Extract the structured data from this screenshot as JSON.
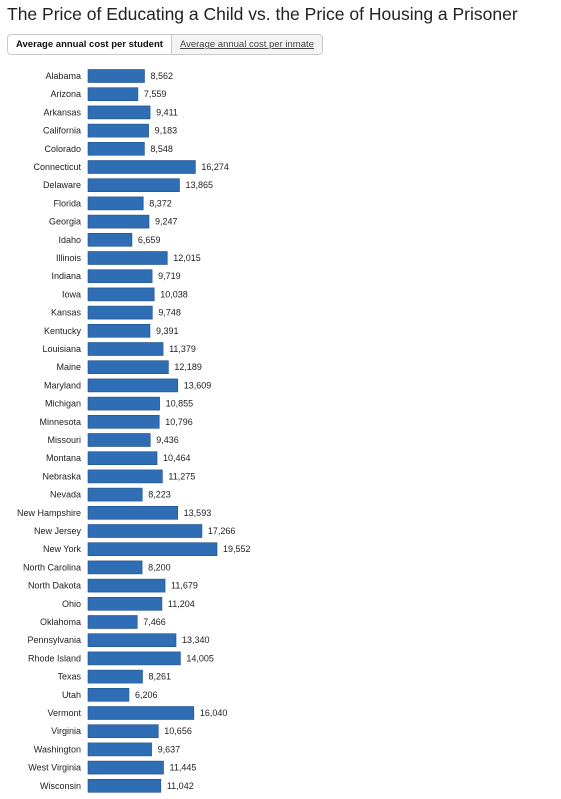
{
  "title": "The Price of Educating a Child vs. the Price of Housing a Prisoner",
  "tabs": [
    {
      "label": "Average annual cost per student",
      "active": true
    },
    {
      "label": "Average annual cost per inmate",
      "active": false
    }
  ],
  "colors": {
    "bar": "#2f6eb5",
    "bar_stroke": "#1f4f88"
  },
  "chart_data": {
    "type": "bar",
    "orientation": "horizontal",
    "categories": [
      "Alabama",
      "Arizona",
      "Arkansas",
      "California",
      "Colorado",
      "Connecticut",
      "Delaware",
      "Florida",
      "Georgia",
      "Idaho",
      "Illinois",
      "Indiana",
      "Iowa",
      "Kansas",
      "Kentucky",
      "Louisiana",
      "Maine",
      "Maryland",
      "Michigan",
      "Minnesota",
      "Missouri",
      "Montana",
      "Nebraska",
      "Nevada",
      "New Hampshire",
      "New Jersey",
      "New York",
      "North Carolina",
      "North Dakota",
      "Ohio",
      "Oklahoma",
      "Pennsylvania",
      "Rhode Island",
      "Texas",
      "Utah",
      "Vermont",
      "Virginia",
      "Washington",
      "West Virginia",
      "Wisconsin"
    ],
    "values": [
      8562,
      7559,
      9411,
      9183,
      8548,
      16274,
      13865,
      8372,
      9247,
      6659,
      12015,
      9719,
      10038,
      9748,
      9391,
      11379,
      12189,
      13609,
      10855,
      10796,
      9436,
      10464,
      11275,
      8223,
      13593,
      17266,
      19552,
      8200,
      11679,
      11204,
      7466,
      13340,
      14005,
      8261,
      6206,
      16040,
      10656,
      9637,
      11445,
      11042
    ],
    "value_labels": [
      "8,562",
      "7,559",
      "9,411",
      "9,183",
      "8,548",
      "16,274",
      "13,865",
      "8,372",
      "9,247",
      "6,659",
      "12,015",
      "9,719",
      "10,038",
      "9,748",
      "9,391",
      "11,379",
      "12,189",
      "13,609",
      "10,855",
      "10,796",
      "9,436",
      "10,464",
      "11,275",
      "8,223",
      "13,593",
      "17,266",
      "19,552",
      "8,200",
      "11,679",
      "11,204",
      "7,466",
      "13,340",
      "14,005",
      "8,261",
      "6,206",
      "16,040",
      "10,656",
      "9,637",
      "11,445",
      "11,042"
    ],
    "xlim": [
      0,
      19552
    ],
    "grid": false,
    "legend": "none"
  }
}
